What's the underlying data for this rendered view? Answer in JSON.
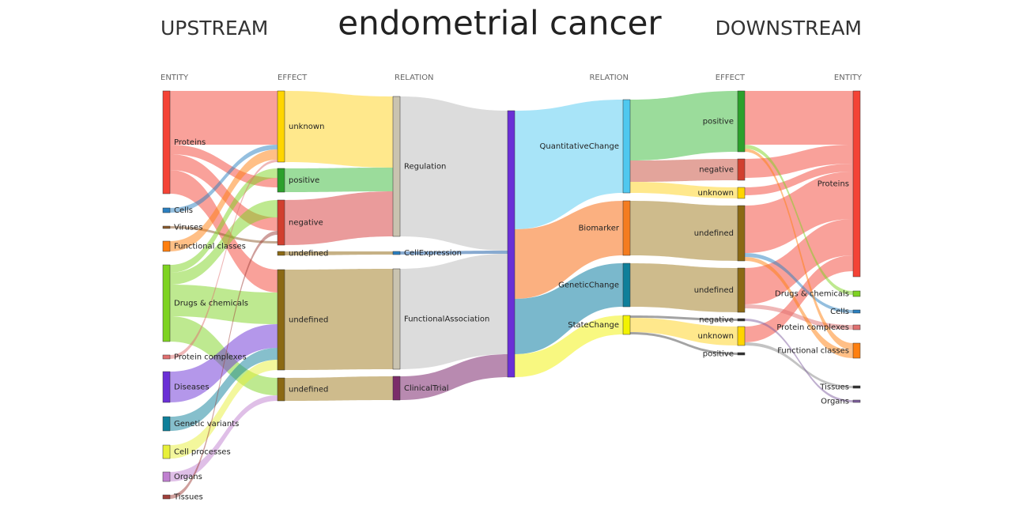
{
  "title": "endometrial cancer",
  "upstream": "UPSTREAM",
  "downstream": "DOWNSTREAM",
  "columns": [
    {
      "header": "ENTITY",
      "nodes": [
        "Proteins",
        "Cells",
        "Viruses",
        "Functional classes",
        "Drugs & chemicals",
        "Protein complexes",
        "Diseases",
        "Genetic variants",
        "Cell processes",
        "Organs",
        "Tissues"
      ]
    },
    {
      "header": "EFFECT",
      "nodes": [
        "unknown",
        "positive",
        "negative",
        "undefined",
        "undefined",
        "undefined"
      ]
    },
    {
      "header": "RELATION",
      "nodes": [
        "Regulation",
        "CellExpression",
        "FunctionalAssociation",
        "ClinicalTrial"
      ]
    },
    {
      "header": "RELATION",
      "nodes": [
        "QuantitativeChange",
        "Biomarker",
        "GeneticChange",
        "StateChange"
      ]
    },
    {
      "header": "EFFECT",
      "nodes": [
        "positive",
        "negative",
        "unknown",
        "undefined",
        "undefined",
        "negative",
        "unknown",
        "positive"
      ]
    },
    {
      "header": "ENTITY",
      "nodes": [
        "Proteins",
        "Drugs & chemicals",
        "Cells",
        "Protein complexes",
        "Functional classes",
        "Tissues",
        "Organs"
      ]
    }
  ]
}
